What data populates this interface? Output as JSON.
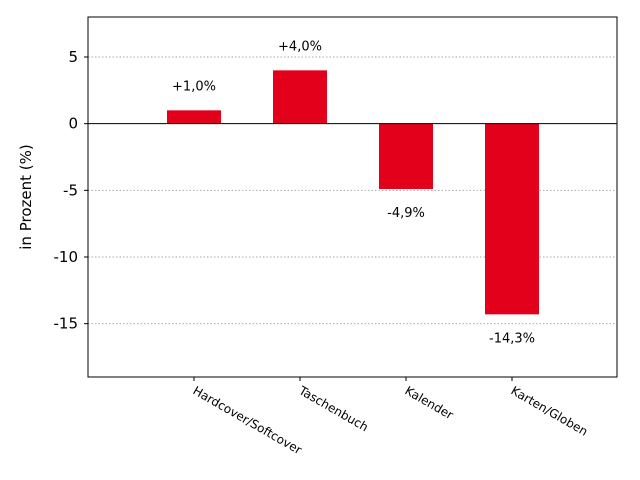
{
  "chart_data": {
    "type": "bar",
    "categories": [
      "Hardcover/Softcover",
      "Taschenbuch",
      "Kalender",
      "Karten/Globen"
    ],
    "values": [
      1.0,
      4.0,
      -4.9,
      -14.3
    ],
    "value_labels": [
      "+1,0%",
      "+4,0%",
      "-4,9%",
      "-14,3%"
    ],
    "ylabel": "in Prozent (%)",
    "xlabel": "",
    "title": "",
    "ylim": [
      -19,
      8
    ],
    "yticks": [
      5,
      0,
      -5,
      -10,
      -15
    ],
    "ytick_labels": [
      "5",
      "0",
      "-5",
      "-10",
      "-15"
    ],
    "grid": "horizontal dotted",
    "bar_color": "#e2001a"
  }
}
